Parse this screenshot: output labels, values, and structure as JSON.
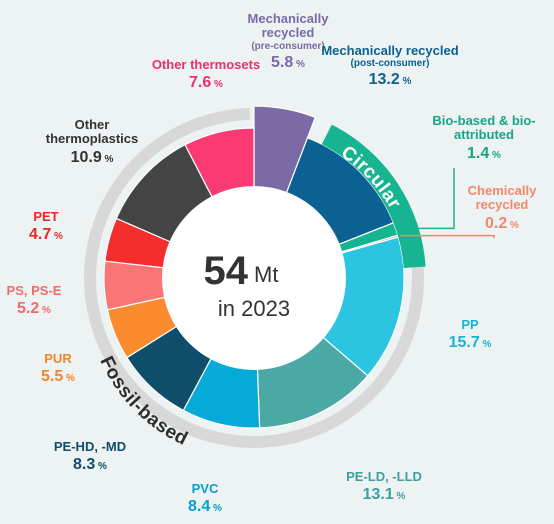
{
  "chart_data": {
    "type": "pie",
    "center": {
      "value": "54",
      "unit": "Mt",
      "caption": "in 2023"
    },
    "groups": [
      {
        "name": "Circular"
      },
      {
        "name": "Fossil-based"
      }
    ],
    "percent_sign": "%",
    "slices": [
      {
        "key": "mech-pre",
        "name": "Mechanically recycled",
        "sub": "(pre-consumer)",
        "value": 5.8,
        "display": "5.8",
        "group": "circular",
        "color": "#7b6aa5",
        "label_color": "#7b6aa5"
      },
      {
        "key": "mech-post",
        "name": "Mechanically recycled",
        "sub": "(post-consumer)",
        "value": 13.2,
        "display": "13.2",
        "group": "circular",
        "color": "#0a6192",
        "label_color": "#0a6192"
      },
      {
        "key": "bio",
        "name": "Bio-based & bio-attributed",
        "sub": "",
        "value": 1.4,
        "display": "1.4",
        "group": "circular",
        "color": "#17b491",
        "label_color": "#17a585"
      },
      {
        "key": "chem",
        "name": "Chemically recycled",
        "sub": "",
        "value": 0.2,
        "display": "0.2",
        "group": "circular",
        "color": "#f3876b",
        "label_color": "#f3876b"
      },
      {
        "key": "pp",
        "name": "PP",
        "sub": "",
        "value": 15.7,
        "display": "15.7",
        "group": "fossil",
        "color": "#2bc4e1",
        "label_color": "#1ab3d4"
      },
      {
        "key": "pe-ld",
        "name": "PE-LD, -LLD",
        "sub": "",
        "value": 13.1,
        "display": "13.1",
        "group": "fossil",
        "color": "#4aa8a5",
        "label_color": "#3f9f9d"
      },
      {
        "key": "pvc",
        "name": "PVC",
        "sub": "",
        "value": 8.4,
        "display": "8.4",
        "group": "fossil",
        "color": "#05aad6",
        "label_color": "#05a0cd"
      },
      {
        "key": "pe-hd",
        "name": "PE-HD, -MD",
        "sub": "",
        "value": 8.3,
        "display": "8.3",
        "group": "fossil",
        "color": "#0f4e6a",
        "label_color": "#0f4e6a"
      },
      {
        "key": "pur",
        "name": "PUR",
        "sub": "",
        "value": 5.5,
        "display": "5.5",
        "group": "fossil",
        "color": "#fa8b2e",
        "label_color": "#f78524"
      },
      {
        "key": "ps",
        "name": "PS, PS-E",
        "sub": "",
        "value": 5.2,
        "display": "5.2",
        "group": "fossil",
        "color": "#fa7575",
        "label_color": "#f46a6a"
      },
      {
        "key": "pet",
        "name": "PET",
        "sub": "",
        "value": 4.7,
        "display": "4.7",
        "group": "fossil",
        "color": "#f52d2d",
        "label_color": "#ec2626"
      },
      {
        "key": "other-tp",
        "name": "Other thermoplastics",
        "sub": "",
        "value": 10.9,
        "display": "10.9",
        "group": "fossil",
        "color": "#444444",
        "label_color": "#333333"
      },
      {
        "key": "other-ts",
        "name": "Other thermosets",
        "sub": "",
        "value": 7.6,
        "display": "7.6",
        "group": "fossil",
        "color": "#fa3a72",
        "label_color": "#ee2f69"
      }
    ]
  }
}
